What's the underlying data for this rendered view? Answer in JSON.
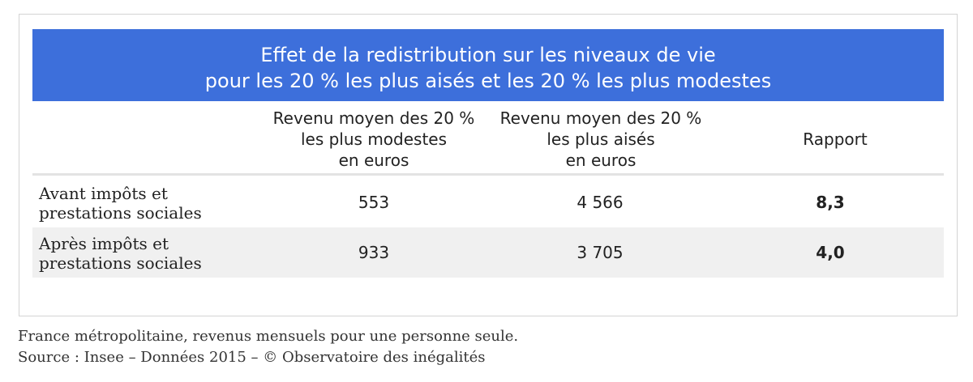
{
  "title": {
    "line1": "Effet de la redistribution sur les niveaux de vie",
    "line2": "pour les 20 % les plus aisés et les 20 % les plus modestes"
  },
  "colors": {
    "title_band": "#3d6fdb",
    "row_shade": "#f0f0f0"
  },
  "chart_data": {
    "type": "table",
    "title": "Effet de la redistribution sur les niveaux de vie pour les 20 % les plus aisés et les 20 % les plus modestes",
    "columns": [
      {
        "lines": [
          "Revenu moyen des 20 %",
          "les plus modestes",
          "en euros"
        ]
      },
      {
        "lines": [
          "Revenu moyen des 20 %",
          "les plus aisés",
          "en euros"
        ]
      },
      {
        "lines": [
          "Rapport"
        ]
      }
    ],
    "rows": [
      {
        "label_lines": [
          "Avant impôts et",
          "prestations sociales"
        ],
        "values": [
          "553",
          "4 566",
          "8,3"
        ]
      },
      {
        "label_lines": [
          "Après impôts et",
          "prestations sociales"
        ],
        "values": [
          "933",
          "3 705",
          "4,0"
        ]
      }
    ]
  },
  "footnote": {
    "line1": "France métropolitaine, revenus mensuels pour une personne seule.",
    "line2": "Source : Insee – Données 2015 – © Observatoire des inégalités"
  }
}
